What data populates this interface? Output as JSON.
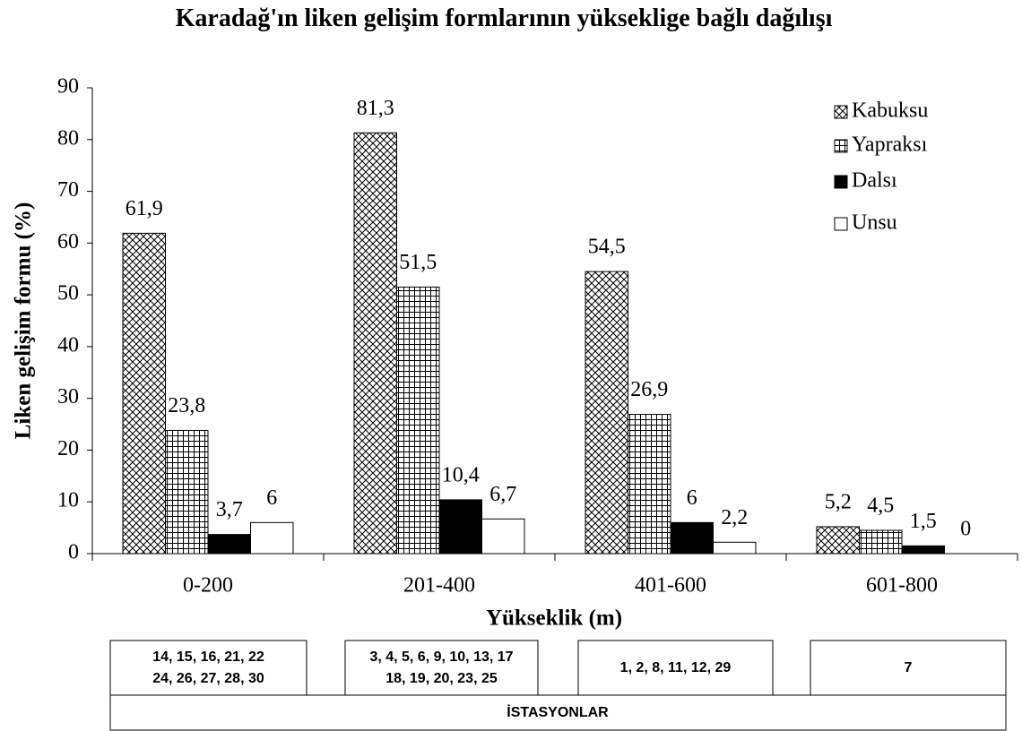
{
  "chart_data": {
    "type": "bar",
    "title": "Karadağ'ın liken gelişim formlarının yükseklige bağlı dağılışı",
    "x_label": "Yükseklik (m)",
    "y_label": "Liken gelişim formu (%)",
    "categories": [
      "0-200",
      "201-400",
      "401-600",
      "601-800"
    ],
    "series": [
      {
        "name": "Kabuksu",
        "color": "#000000",
        "pattern": "crosshatch",
        "values": [
          61.9,
          81.3,
          54.5,
          5.2
        ],
        "value_labels": [
          "61,9",
          "81,3",
          "54,5",
          "5,2"
        ]
      },
      {
        "name": "Yapraksı",
        "color": "#000000",
        "pattern": "grid",
        "values": [
          23.8,
          51.5,
          26.9,
          4.5
        ],
        "value_labels": [
          "23,8",
          "51,5",
          "26,9",
          "4,5"
        ]
      },
      {
        "name": "Dalsı",
        "color": "#000000",
        "pattern": "solid",
        "values": [
          3.7,
          10.4,
          6,
          1.5
        ],
        "value_labels": [
          "3,7",
          "10,4",
          "6",
          "1,5"
        ]
      },
      {
        "name": "Unsu",
        "color": "#ffffff",
        "pattern": "solid",
        "values": [
          6,
          6.7,
          2.2,
          0
        ],
        "value_labels": [
          "6",
          "6,7",
          "2,2",
          "0"
        ]
      }
    ],
    "ylim": [
      0,
      90
    ],
    "yticks": [
      0,
      10,
      20,
      30,
      40,
      50,
      60,
      70,
      80,
      90
    ],
    "grid": false,
    "legend": "top-right"
  },
  "stations": {
    "label": "İSTASYONLAR",
    "groups": [
      [
        "14, 15, 16, 21, 22",
        "24, 26, 27, 28, 30"
      ],
      [
        "3, 4, 5, 6, 9, 10, 13, 17",
        "18, 19, 20, 23, 25"
      ],
      [
        "1, 2, 8, 11, 12, 29"
      ],
      [
        "7"
      ]
    ]
  }
}
